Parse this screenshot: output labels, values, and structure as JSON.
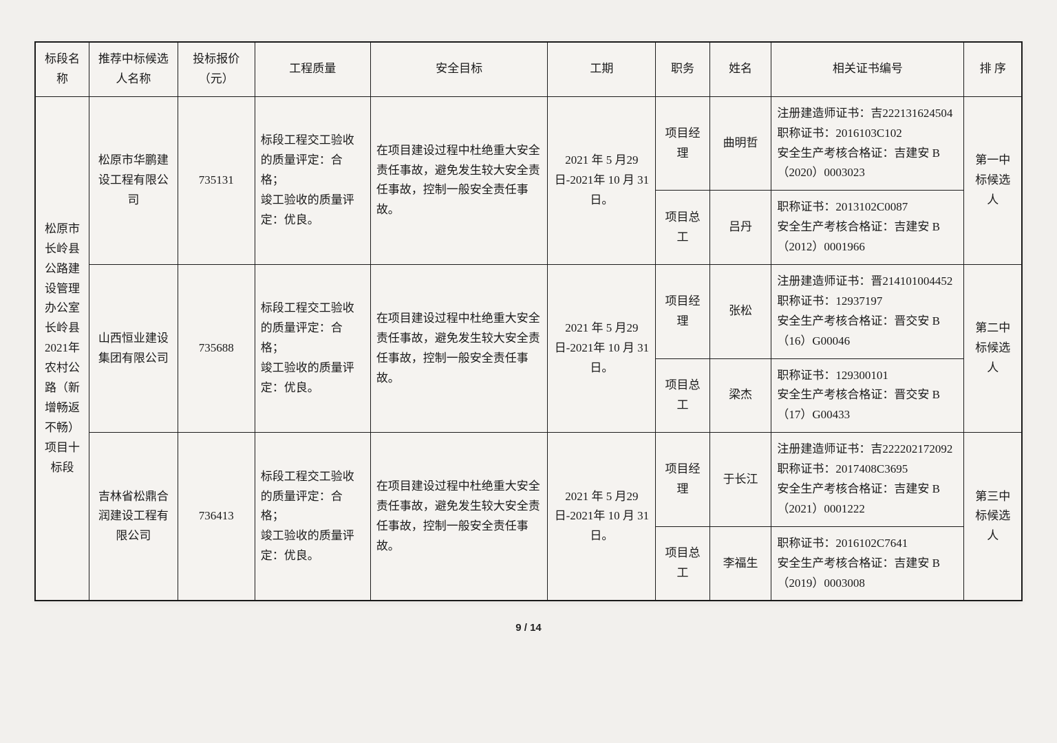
{
  "headers": {
    "section": "标段名称",
    "bidder": "推荐中标候选人名称",
    "price": "投标报价（元）",
    "quality": "工程质量",
    "safety": "安全目标",
    "period": "工期",
    "role": "职务",
    "name": "姓名",
    "cert": "相关证书编号",
    "rank": "排 序"
  },
  "section_name": "松原市长岭县公路建设管理办公室长岭县2021年农村公路（新增畅返不畅）项目十标段",
  "rows": [
    {
      "bidder": "松原市华鹏建设工程有限公司",
      "price": "735131",
      "quality": "标段工程交工验收的质量评定：合格；\n竣工验收的质量评定：优良。",
      "safety": "在项目建设过程中杜绝重大安全责任事故，避免发生较大安全责任事故，控制一般安全责任事故。",
      "period": "2021 年 5 月29 日-2021年 10 月 31日。",
      "personnel": [
        {
          "role": "项目经理",
          "name": "曲明哲",
          "cert": "注册建造师证书：吉222131624504\n职称证书：2016103C102\n安全生产考核合格证：吉建安 B（2020）0003023"
        },
        {
          "role": "项目总工",
          "name": "吕丹",
          "cert": "职称证书：2013102C0087\n安全生产考核合格证：吉建安 B（2012）0001966"
        }
      ],
      "rank": "第一中标候选人"
    },
    {
      "bidder": "山西恒业建设集团有限公司",
      "price": "735688",
      "quality": "标段工程交工验收的质量评定：合格；\n竣工验收的质量评定：优良。",
      "safety": "在项目建设过程中杜绝重大安全责任事故，避免发生较大安全责任事故，控制一般安全责任事故。",
      "period": "2021 年 5 月29 日-2021年 10 月 31日。",
      "personnel": [
        {
          "role": "项目经理",
          "name": "张松",
          "cert": "注册建造师证书：晋214101004452\n职称证书：12937197\n安全生产考核合格证：晋交安 B（16）G00046"
        },
        {
          "role": "项目总工",
          "name": "梁杰",
          "cert": "职称证书：129300101\n安全生产考核合格证：晋交安 B（17）G00433"
        }
      ],
      "rank": "第二中标候选人"
    },
    {
      "bidder": "吉林省松鼎合润建设工程有限公司",
      "price": "736413",
      "quality": "标段工程交工验收的质量评定：合格；\n竣工验收的质量评定：优良。",
      "safety": "在项目建设过程中杜绝重大安全责任事故，避免发生较大安全责任事故，控制一般安全责任事故。",
      "period": "2021 年 5 月29 日-2021年 10 月 31日。",
      "personnel": [
        {
          "role": "项目经理",
          "name": "于长江",
          "cert": "注册建造师证书：吉222202172092\n职称证书：2017408C3695\n安全生产考核合格证：吉建安 B（2021）0001222"
        },
        {
          "role": "项目总工",
          "name": "李福生",
          "cert": "职称证书：2016102C7641\n安全生产考核合格证：吉建安 B（2019）0003008"
        }
      ],
      "rank": "第三中标候选人"
    }
  ],
  "page": "9 / 14"
}
